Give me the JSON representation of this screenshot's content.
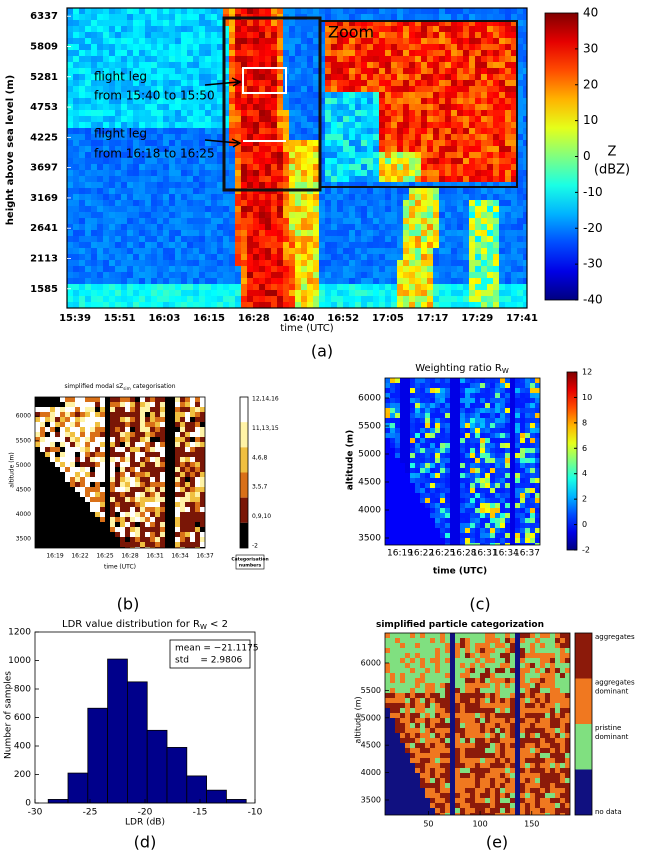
{
  "chart_data": [
    {
      "type": "image",
      "ylabel": "height above sea level (m)",
      "xlabel": "time (UTC)",
      "caption": "(a)",
      "ylim": [
        1250,
        6480
      ],
      "yticks": [
        1585,
        2113,
        2641,
        3169,
        3697,
        4225,
        4753,
        5281,
        5809,
        6337
      ],
      "x_labels": [
        "15:39",
        "15:51",
        "16:03",
        "16:15",
        "16:28",
        "16:40",
        "16:52",
        "17:05",
        "17:17",
        "17:29",
        "17:41"
      ],
      "ytick_color": "#3d8b3d",
      "xtick_color": "#e0302a",
      "annotations": [
        "Zoom",
        "flight leg",
        "from 15:40 to 15:50",
        "flight leg",
        "from 16:18 to 16:25"
      ],
      "colorbar": {
        "lim": [
          -40,
          40
        ],
        "ticks": [
          -40,
          -30,
          -20,
          -10,
          0,
          10,
          20,
          30,
          40
        ],
        "label": [
          "Z",
          "(dBZ)"
        ],
        "colormap": "jet"
      }
    },
    {
      "type": "image",
      "title": [
        {
          "text": "simplified modal sZ"
        },
        {
          "text": "sim",
          "sub": true
        },
        {
          "text": " categorisation"
        }
      ],
      "ylabel": "altitude (m)",
      "xlabel": "time (UTC)",
      "caption": "(b)",
      "ylim": [
        3320,
        6390
      ],
      "yticks": [
        3500,
        4000,
        4500,
        5000,
        5500,
        6000
      ],
      "x_labels": [
        "16:19",
        "16:22",
        "16:25",
        "16:28",
        "16:31",
        "16:34",
        "16:37"
      ],
      "colorbar": {
        "labels": [
          "12,14,16",
          "11,13,15",
          "4,6,8",
          "3,5,7",
          "0,9,10",
          "-2"
        ],
        "colors": [
          "#ffffff",
          "#fff3a6",
          "#f0c040",
          "#d97018",
          "#7a1606",
          "#000000"
        ],
        "title": [
          "Categorisation",
          "numbers"
        ]
      }
    },
    {
      "type": "image",
      "title": [
        {
          "text": "Weighting ratio R"
        },
        {
          "text": "W",
          "sub": true
        }
      ],
      "ylabel": "altitude (m)",
      "xlabel": "time (UTC)",
      "caption": "(c)",
      "ylim": [
        3375,
        6357
      ],
      "yticks": [
        3500,
        4000,
        4500,
        5000,
        5500,
        6000
      ],
      "x_labels": [
        "16:19",
        "16:22",
        "16:25",
        "16:28",
        "16:31",
        "16:34",
        "16:37"
      ],
      "colorbar": {
        "lim": [
          -2,
          12
        ],
        "ticks": [
          -2,
          0,
          2,
          4,
          6,
          8,
          10,
          12
        ],
        "colormap": "jet"
      }
    },
    {
      "type": "histogram",
      "title": [
        {
          "text": "LDR value distribution for R"
        },
        {
          "text": "W",
          "sub": true
        },
        {
          "text": " < 2"
        }
      ],
      "xlabel": "LDR (dB)",
      "ylabel": "Number of samples",
      "caption": "(d)",
      "bins": [
        -28.8,
        -27,
        -25.2,
        -23.4,
        -21.6,
        -19.8,
        -18,
        -16.2,
        -14.4,
        -12.6,
        -10.8
      ],
      "values": [
        25,
        210,
        665,
        1010,
        850,
        510,
        390,
        190,
        90,
        25
      ],
      "color": "#00008b",
      "xlim": [
        -30,
        -10
      ],
      "xticks": [
        -30,
        -25,
        -20,
        -15,
        -10
      ],
      "ylim": [
        0,
        1200
      ],
      "yticks": [
        0,
        200,
        400,
        600,
        800,
        1000,
        1200
      ],
      "legend": [
        "mean = −21.1175",
        "std    = 2.9806"
      ]
    },
    {
      "type": "image",
      "title": [
        {
          "text": "simplified particle categorization"
        }
      ],
      "ylabel": "altitude (m)",
      "caption": "(e)",
      "ylim": [
        3226,
        6547
      ],
      "yticks": [
        3500,
        4000,
        4500,
        5000,
        5500,
        6000
      ],
      "xlim": [
        8,
        187
      ],
      "xticks": [
        50,
        100,
        150
      ],
      "colorbar": {
        "labels": [
          [
            "aggregates"
          ],
          [
            "aggregates",
            "dominant"
          ],
          [
            "pristine",
            "dominant"
          ],
          [
            "no data"
          ]
        ],
        "colors": [
          "#8c1a0a",
          "#f07820",
          "#80e080",
          "#101080"
        ]
      }
    }
  ]
}
